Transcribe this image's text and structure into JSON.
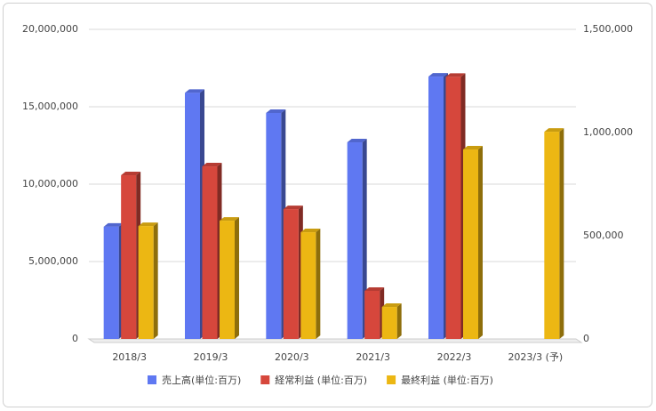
{
  "chart_data": {
    "type": "bar3d",
    "categories": [
      "2018/3",
      "2019/3",
      "2020/3",
      "2021/3",
      "2022/3",
      "2023/3 (予)"
    ],
    "series": [
      {
        "name": "売上高(単位:百万)",
        "color": "#5f78f2",
        "axis": "y",
        "values": [
          7250000,
          15900000,
          14600000,
          12700000,
          16950000,
          null
        ]
      },
      {
        "name": "経常利益 (単位:百万)",
        "color": "#d6473c",
        "axis": "y2",
        "values": [
          793000,
          836000,
          629000,
          233000,
          1270000,
          null
        ]
      },
      {
        "name": "最終利益 (単位:百万)",
        "color": "#ecb713",
        "axis": "y2",
        "values": [
          547000,
          573000,
          517000,
          155000,
          918000,
          1004000
        ]
      }
    ],
    "ylim": [
      0,
      20000000
    ],
    "yticks": [
      0,
      {
        "value": 5000000,
        "label": "5,000,000"
      },
      {
        "value": 10000000,
        "label": "10,000,000"
      },
      {
        "value": 15000000,
        "label": "15,000,000"
      },
      {
        "value": 20000000,
        "label": "20,000,000"
      }
    ],
    "y2lim": [
      0,
      1500000
    ],
    "y2ticks": [
      0,
      {
        "value": 500000,
        "label": "500,000"
      },
      {
        "value": 1000000,
        "label": "1,000,000"
      },
      {
        "value": 1500000,
        "label": "1,500,000"
      }
    ],
    "grid": true
  }
}
